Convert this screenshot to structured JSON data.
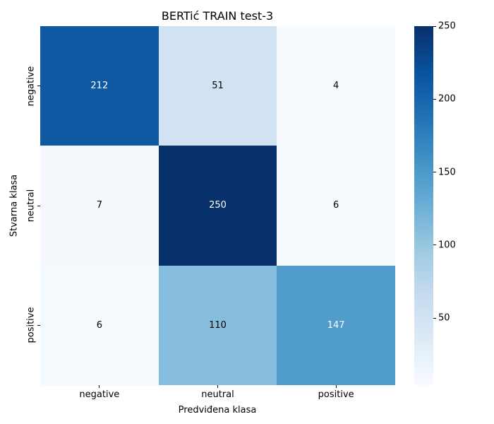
{
  "chart_data": {
    "type": "heatmap",
    "title": "BERTić TRAIN test-3",
    "xlabel": "Predviđena klasa",
    "ylabel": "Stvarna klasa",
    "x_categories": [
      "negative",
      "neutral",
      "positive"
    ],
    "y_categories": [
      "negative",
      "neutral",
      "positive"
    ],
    "values": [
      [
        212,
        51,
        4
      ],
      [
        7,
        250,
        6
      ],
      [
        6,
        110,
        147
      ]
    ],
    "vmin": 4,
    "vmax": 250,
    "colormap": "Blues",
    "colorbar_ticks": [
      50,
      100,
      150,
      200,
      250
    ],
    "annotation_colors": {
      "on_dark": "#ffffff",
      "on_light": "#000000"
    },
    "background": "#ffffff",
    "legend_position": "right-colorbar",
    "grid": false
  }
}
